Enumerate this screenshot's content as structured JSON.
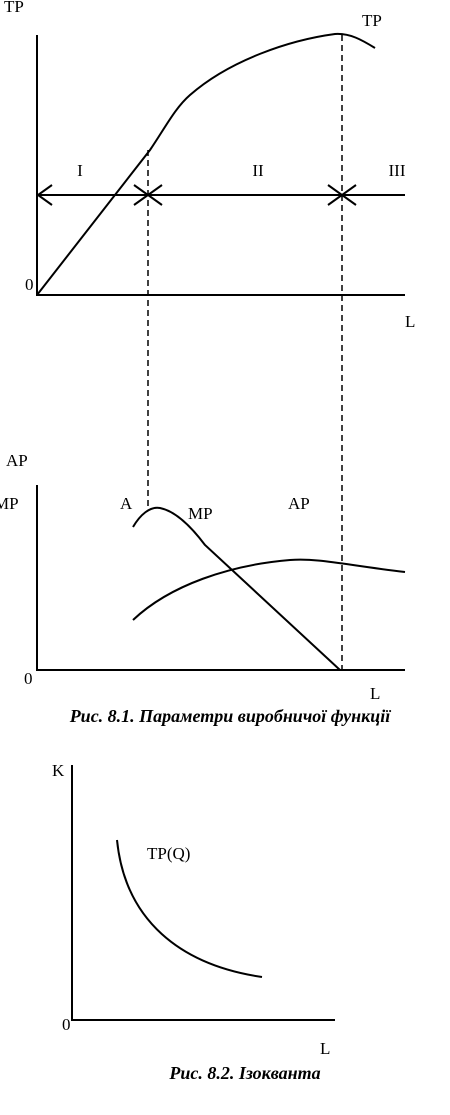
{
  "figure1": {
    "top_panel": {
      "y_axis_label": "TP",
      "curve_label": "TP",
      "stages": [
        "I",
        "II",
        "III"
      ],
      "origin": "0",
      "x_axis_label": "L"
    },
    "bottom_panel": {
      "y_axis_labels": [
        "AP",
        "MP"
      ],
      "point_label": "A",
      "mp_label": "MP",
      "ap_label": "AP",
      "origin": "0",
      "x_axis_label": "L"
    },
    "caption": "Рис. 8.1. Параметри виробничої функції"
  },
  "figure2": {
    "y_axis_label": "K",
    "curve_label": "TP(Q)",
    "origin": "0",
    "x_axis_label": "L",
    "caption": "Рис. 8.2. Ізокванта"
  }
}
